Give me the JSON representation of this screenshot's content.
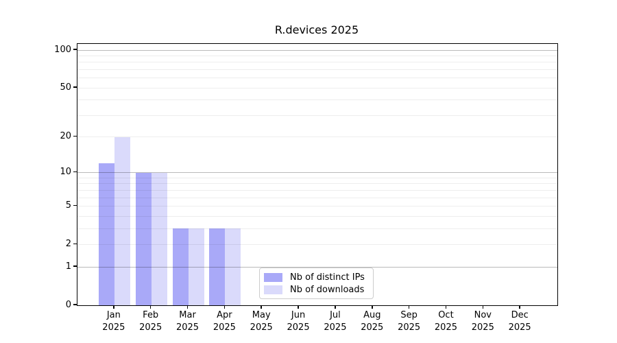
{
  "chart_data": {
    "type": "bar",
    "title": "R.devices 2025",
    "categories": [
      "Jan",
      "Feb",
      "Mar",
      "Apr",
      "May",
      "Jun",
      "Jul",
      "Aug",
      "Sep",
      "Oct",
      "Nov",
      "Dec"
    ],
    "year_label": "2025",
    "series": [
      {
        "name": "Nb of distinct IPs",
        "color": "#a9a9f8",
        "values": [
          12,
          10,
          3,
          3,
          0,
          0,
          0,
          0,
          0,
          0,
          0,
          0
        ]
      },
      {
        "name": "Nb of downloads",
        "color": "#dadafb",
        "values": [
          20,
          10,
          3,
          3,
          0,
          0,
          0,
          0,
          0,
          0,
          0,
          0
        ]
      }
    ],
    "yscale": "log1p",
    "ylim": [
      0,
      112
    ],
    "yticks": [
      0,
      1,
      2,
      5,
      10,
      20,
      50,
      100
    ],
    "major_gridlines": [
      1,
      10,
      100
    ],
    "minor_gridlines": [
      2,
      3,
      4,
      5,
      6,
      7,
      8,
      9,
      20,
      30,
      40,
      50,
      60,
      70,
      80,
      90
    ],
    "grid": true,
    "legend_position": "lower center"
  }
}
